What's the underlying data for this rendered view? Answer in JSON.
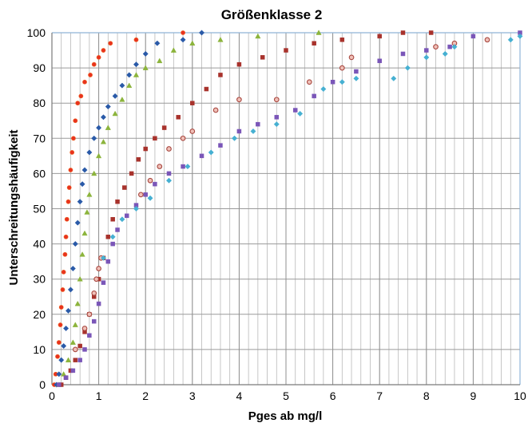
{
  "chart_data": {
    "type": "scatter",
    "title": "Größenklasse 2",
    "xlabel": "Pges ab mg/l",
    "ylabel": "Unterschreitungshäufigkeit",
    "xlim": [
      0,
      10
    ],
    "ylim": [
      0,
      100
    ],
    "x_major_ticks": [
      "0",
      "1",
      "2",
      "3",
      "4",
      "5",
      "6",
      "7",
      "8",
      "9",
      "10"
    ],
    "y_major_ticks": [
      "0",
      "10",
      "20",
      "30",
      "40",
      "50",
      "60",
      "70",
      "80",
      "90",
      "100"
    ],
    "x_minor_step": 0.2,
    "grid": true,
    "legend": "none",
    "series": [
      {
        "color": "#e8321e",
        "edge": "#f06a2a",
        "marker": "circle",
        "points": [
          [
            0.05,
            0
          ],
          [
            0.08,
            3
          ],
          [
            0.12,
            8
          ],
          [
            0.15,
            12
          ],
          [
            0.18,
            17
          ],
          [
            0.2,
            22
          ],
          [
            0.23,
            27
          ],
          [
            0.25,
            32
          ],
          [
            0.28,
            37
          ],
          [
            0.3,
            42
          ],
          [
            0.32,
            47
          ],
          [
            0.35,
            52
          ],
          [
            0.37,
            56
          ],
          [
            0.4,
            61
          ],
          [
            0.43,
            66
          ],
          [
            0.46,
            70
          ],
          [
            0.5,
            75
          ],
          [
            0.55,
            80
          ],
          [
            0.62,
            82
          ],
          [
            0.7,
            86
          ],
          [
            0.82,
            88
          ],
          [
            0.9,
            91
          ],
          [
            1.0,
            93
          ],
          [
            1.1,
            95
          ],
          [
            1.25,
            97
          ],
          [
            1.8,
            98
          ],
          [
            2.8,
            100
          ]
        ]
      },
      {
        "color": "#2a5aa8",
        "edge": "#2a5aa8",
        "marker": "diamond",
        "points": [
          [
            0.1,
            0
          ],
          [
            0.15,
            3
          ],
          [
            0.2,
            7
          ],
          [
            0.25,
            11
          ],
          [
            0.3,
            16
          ],
          [
            0.35,
            21
          ],
          [
            0.4,
            27
          ],
          [
            0.45,
            33
          ],
          [
            0.5,
            40
          ],
          [
            0.55,
            46
          ],
          [
            0.6,
            52
          ],
          [
            0.65,
            57
          ],
          [
            0.7,
            61
          ],
          [
            0.8,
            66
          ],
          [
            0.9,
            70
          ],
          [
            1.0,
            73
          ],
          [
            1.1,
            76
          ],
          [
            1.2,
            79
          ],
          [
            1.35,
            82
          ],
          [
            1.5,
            85
          ],
          [
            1.65,
            88
          ],
          [
            1.8,
            91
          ],
          [
            2.0,
            94
          ],
          [
            2.25,
            97
          ],
          [
            2.8,
            98
          ],
          [
            3.2,
            100
          ]
        ]
      },
      {
        "color": "#8cb43c",
        "edge": "#8cb43c",
        "marker": "triangle",
        "points": [
          [
            0.15,
            0
          ],
          [
            0.25,
            3
          ],
          [
            0.35,
            7
          ],
          [
            0.45,
            12
          ],
          [
            0.5,
            17
          ],
          [
            0.55,
            23
          ],
          [
            0.6,
            30
          ],
          [
            0.65,
            37
          ],
          [
            0.7,
            43
          ],
          [
            0.75,
            49
          ],
          [
            0.8,
            54
          ],
          [
            0.9,
            60
          ],
          [
            1.0,
            65
          ],
          [
            1.1,
            69
          ],
          [
            1.2,
            73
          ],
          [
            1.35,
            77
          ],
          [
            1.5,
            81
          ],
          [
            1.65,
            85
          ],
          [
            1.8,
            88
          ],
          [
            2.0,
            90
          ],
          [
            2.3,
            92
          ],
          [
            2.6,
            95
          ],
          [
            3.0,
            97
          ],
          [
            3.6,
            98
          ],
          [
            4.4,
            99
          ],
          [
            5.7,
            100
          ]
        ]
      },
      {
        "color": "#a8322c",
        "edge": "#a8322c",
        "marker": "square",
        "points": [
          [
            0.2,
            0
          ],
          [
            0.3,
            2
          ],
          [
            0.4,
            4
          ],
          [
            0.5,
            7
          ],
          [
            0.6,
            11
          ],
          [
            0.7,
            15
          ],
          [
            0.8,
            20
          ],
          [
            0.9,
            25
          ],
          [
            1.0,
            30
          ],
          [
            1.1,
            36
          ],
          [
            1.2,
            42
          ],
          [
            1.3,
            47
          ],
          [
            1.4,
            52
          ],
          [
            1.55,
            56
          ],
          [
            1.7,
            60
          ],
          [
            1.85,
            64
          ],
          [
            2.0,
            67
          ],
          [
            2.2,
            70
          ],
          [
            2.4,
            73
          ],
          [
            2.7,
            76
          ],
          [
            3.0,
            80
          ],
          [
            3.3,
            84
          ],
          [
            3.6,
            88
          ],
          [
            4.0,
            91
          ],
          [
            4.5,
            93
          ],
          [
            5.0,
            95
          ],
          [
            5.6,
            97
          ],
          [
            6.2,
            98
          ],
          [
            7.0,
            99
          ],
          [
            7.5,
            100
          ],
          [
            8.1,
            100
          ]
        ]
      },
      {
        "color": "#7a56b8",
        "edge": "#7a56b8",
        "marker": "square",
        "points": [
          [
            0.15,
            0
          ],
          [
            0.3,
            2
          ],
          [
            0.45,
            4
          ],
          [
            0.6,
            7
          ],
          [
            0.7,
            10
          ],
          [
            0.8,
            14
          ],
          [
            0.9,
            18
          ],
          [
            1.0,
            23
          ],
          [
            1.1,
            29
          ],
          [
            1.2,
            35
          ],
          [
            1.3,
            40
          ],
          [
            1.4,
            44
          ],
          [
            1.6,
            48
          ],
          [
            1.8,
            51
          ],
          [
            2.0,
            54
          ],
          [
            2.2,
            57
          ],
          [
            2.5,
            60
          ],
          [
            2.8,
            62
          ],
          [
            3.2,
            65
          ],
          [
            3.6,
            68
          ],
          [
            4.0,
            72
          ],
          [
            4.4,
            74
          ],
          [
            4.8,
            76
          ],
          [
            5.2,
            78
          ],
          [
            5.6,
            82
          ],
          [
            6.0,
            86
          ],
          [
            6.5,
            89
          ],
          [
            7.0,
            92
          ],
          [
            7.5,
            94
          ],
          [
            8.0,
            95
          ],
          [
            8.5,
            96
          ],
          [
            9.0,
            99
          ],
          [
            10.0,
            100
          ]
        ]
      },
      {
        "color": "#f0c0b8",
        "edge": "#a84840",
        "marker": "hollow-circle",
        "points": [
          [
            0.5,
            10
          ],
          [
            0.7,
            16
          ],
          [
            0.8,
            20
          ],
          [
            0.9,
            26
          ],
          [
            0.95,
            30
          ],
          [
            1.0,
            33
          ],
          [
            1.05,
            36
          ],
          [
            1.9,
            54
          ],
          [
            2.1,
            58
          ],
          [
            2.3,
            62
          ],
          [
            2.5,
            67
          ],
          [
            2.8,
            70
          ],
          [
            3.0,
            72
          ],
          [
            3.5,
            78
          ],
          [
            4.0,
            81
          ],
          [
            4.8,
            81
          ],
          [
            5.5,
            86
          ],
          [
            6.2,
            90
          ],
          [
            6.4,
            93
          ],
          [
            8.2,
            96
          ],
          [
            8.6,
            97
          ],
          [
            9.3,
            98
          ]
        ]
      },
      {
        "color": "#46b0d2",
        "edge": "#46b0d2",
        "marker": "diamond",
        "points": [
          [
            1.1,
            36
          ],
          [
            1.3,
            42
          ],
          [
            1.5,
            47
          ],
          [
            1.8,
            50
          ],
          [
            2.1,
            53
          ],
          [
            2.5,
            58
          ],
          [
            2.9,
            62
          ],
          [
            3.4,
            66
          ],
          [
            3.9,
            70
          ],
          [
            4.3,
            72
          ],
          [
            4.8,
            74
          ],
          [
            5.3,
            77
          ],
          [
            5.8,
            84
          ],
          [
            6.2,
            86
          ],
          [
            6.5,
            87
          ],
          [
            7.3,
            87
          ],
          [
            7.6,
            90
          ],
          [
            8.0,
            93
          ],
          [
            8.4,
            94
          ],
          [
            8.6,
            96
          ],
          [
            9.8,
            98
          ],
          [
            10.0,
            99
          ]
        ]
      }
    ]
  }
}
